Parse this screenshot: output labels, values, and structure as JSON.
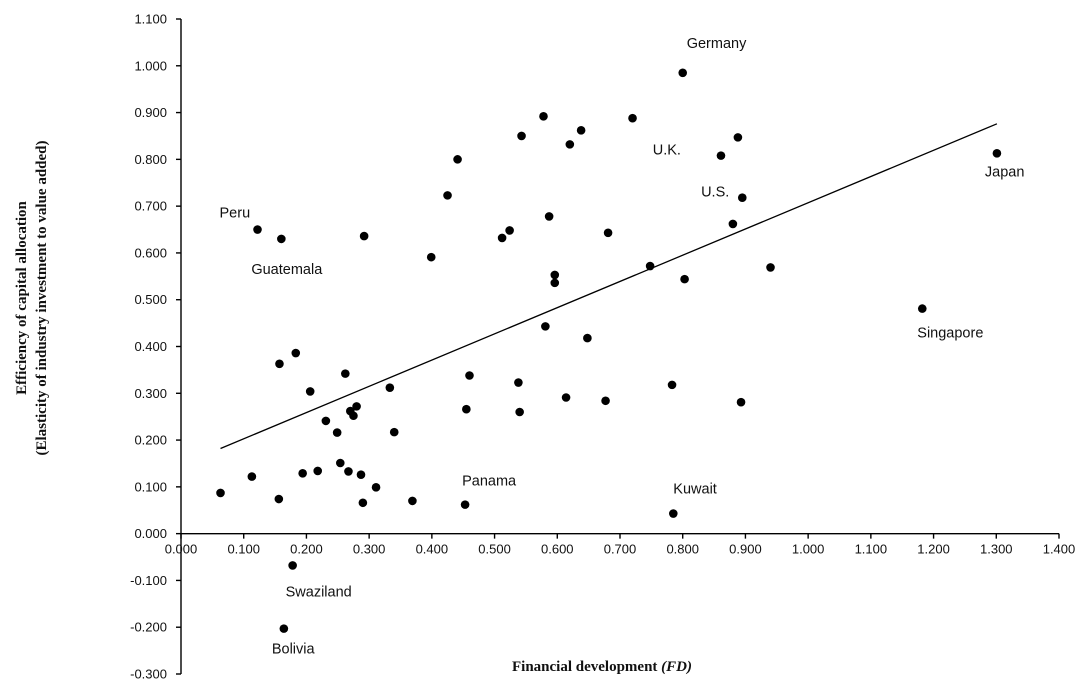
{
  "chart_data": {
    "type": "scatter",
    "xlabel": "Financial development",
    "xlabel_italic": "(FD)",
    "ylabel_line1": "Efficiency of capital allocation",
    "ylabel_line2": "(Elasticity of industry investment to value added)",
    "xlim": [
      0,
      1.4
    ],
    "ylim": [
      -0.3,
      1.1
    ],
    "x_ticks": [
      "0.000",
      "0.100",
      "0.200",
      "0.300",
      "0.400",
      "0.500",
      "0.600",
      "0.700",
      "0.800",
      "0.900",
      "1.000",
      "1.100",
      "1.200",
      "1.300",
      "1.400"
    ],
    "y_ticks": [
      "1.100",
      "1.000",
      "0.900",
      "0.800",
      "0.700",
      "0.600",
      "0.500",
      "0.400",
      "0.300",
      "0.200",
      "0.100",
      "0.000",
      "-0.100",
      "-0.200",
      "-0.300"
    ],
    "trend_line": {
      "x": [
        0.063,
        1.301
      ],
      "y": [
        0.182,
        0.876
      ]
    },
    "labeled_points": [
      {
        "name": "Germany",
        "x": 0.8,
        "y": 0.985
      },
      {
        "name": "U.K.",
        "x": 0.861,
        "y": 0.808
      },
      {
        "name": "U.S.",
        "x": 0.895,
        "y": 0.718
      },
      {
        "name": "Japan",
        "x": 1.301,
        "y": 0.813
      },
      {
        "name": "Peru",
        "x": 0.122,
        "y": 0.65
      },
      {
        "name": "Guatemala",
        "x": 0.16,
        "y": 0.63
      },
      {
        "name": "Singapore",
        "x": 1.182,
        "y": 0.481
      },
      {
        "name": "Panama",
        "x": 0.453,
        "y": 0.062
      },
      {
        "name": "Kuwait",
        "x": 0.785,
        "y": 0.043
      },
      {
        "name": "Swaziland",
        "x": 0.178,
        "y": -0.068
      },
      {
        "name": "Bolivia",
        "x": 0.164,
        "y": -0.203
      }
    ],
    "points": [
      {
        "x": 0.578,
        "y": 0.892
      },
      {
        "x": 0.638,
        "y": 0.862
      },
      {
        "x": 0.72,
        "y": 0.888
      },
      {
        "x": 0.543,
        "y": 0.85
      },
      {
        "x": 0.62,
        "y": 0.832
      },
      {
        "x": 0.888,
        "y": 0.847
      },
      {
        "x": 0.441,
        "y": 0.8
      },
      {
        "x": 0.425,
        "y": 0.723
      },
      {
        "x": 0.292,
        "y": 0.636
      },
      {
        "x": 0.512,
        "y": 0.632
      },
      {
        "x": 0.524,
        "y": 0.648
      },
      {
        "x": 0.587,
        "y": 0.678
      },
      {
        "x": 0.681,
        "y": 0.643
      },
      {
        "x": 0.88,
        "y": 0.662
      },
      {
        "x": 0.399,
        "y": 0.591
      },
      {
        "x": 0.596,
        "y": 0.553
      },
      {
        "x": 0.596,
        "y": 0.536
      },
      {
        "x": 0.748,
        "y": 0.572
      },
      {
        "x": 0.803,
        "y": 0.544
      },
      {
        "x": 0.94,
        "y": 0.569
      },
      {
        "x": 0.581,
        "y": 0.443
      },
      {
        "x": 0.648,
        "y": 0.418
      },
      {
        "x": 0.183,
        "y": 0.386
      },
      {
        "x": 0.157,
        "y": 0.363
      },
      {
        "x": 0.262,
        "y": 0.342
      },
      {
        "x": 0.46,
        "y": 0.338
      },
      {
        "x": 0.538,
        "y": 0.323
      },
      {
        "x": 0.783,
        "y": 0.318
      },
      {
        "x": 0.206,
        "y": 0.304
      },
      {
        "x": 0.333,
        "y": 0.312
      },
      {
        "x": 0.614,
        "y": 0.291
      },
      {
        "x": 0.677,
        "y": 0.284
      },
      {
        "x": 0.893,
        "y": 0.281
      },
      {
        "x": 0.28,
        "y": 0.272
      },
      {
        "x": 0.27,
        "y": 0.262
      },
      {
        "x": 0.275,
        "y": 0.252
      },
      {
        "x": 0.455,
        "y": 0.266
      },
      {
        "x": 0.54,
        "y": 0.26
      },
      {
        "x": 0.231,
        "y": 0.241
      },
      {
        "x": 0.249,
        "y": 0.216
      },
      {
        "x": 0.34,
        "y": 0.217
      },
      {
        "x": 0.254,
        "y": 0.151
      },
      {
        "x": 0.113,
        "y": 0.122
      },
      {
        "x": 0.194,
        "y": 0.129
      },
      {
        "x": 0.218,
        "y": 0.134
      },
      {
        "x": 0.267,
        "y": 0.133
      },
      {
        "x": 0.287,
        "y": 0.126
      },
      {
        "x": 0.311,
        "y": 0.099
      },
      {
        "x": 0.063,
        "y": 0.087
      },
      {
        "x": 0.156,
        "y": 0.074
      },
      {
        "x": 0.29,
        "y": 0.066
      },
      {
        "x": 0.369,
        "y": 0.07
      }
    ]
  }
}
